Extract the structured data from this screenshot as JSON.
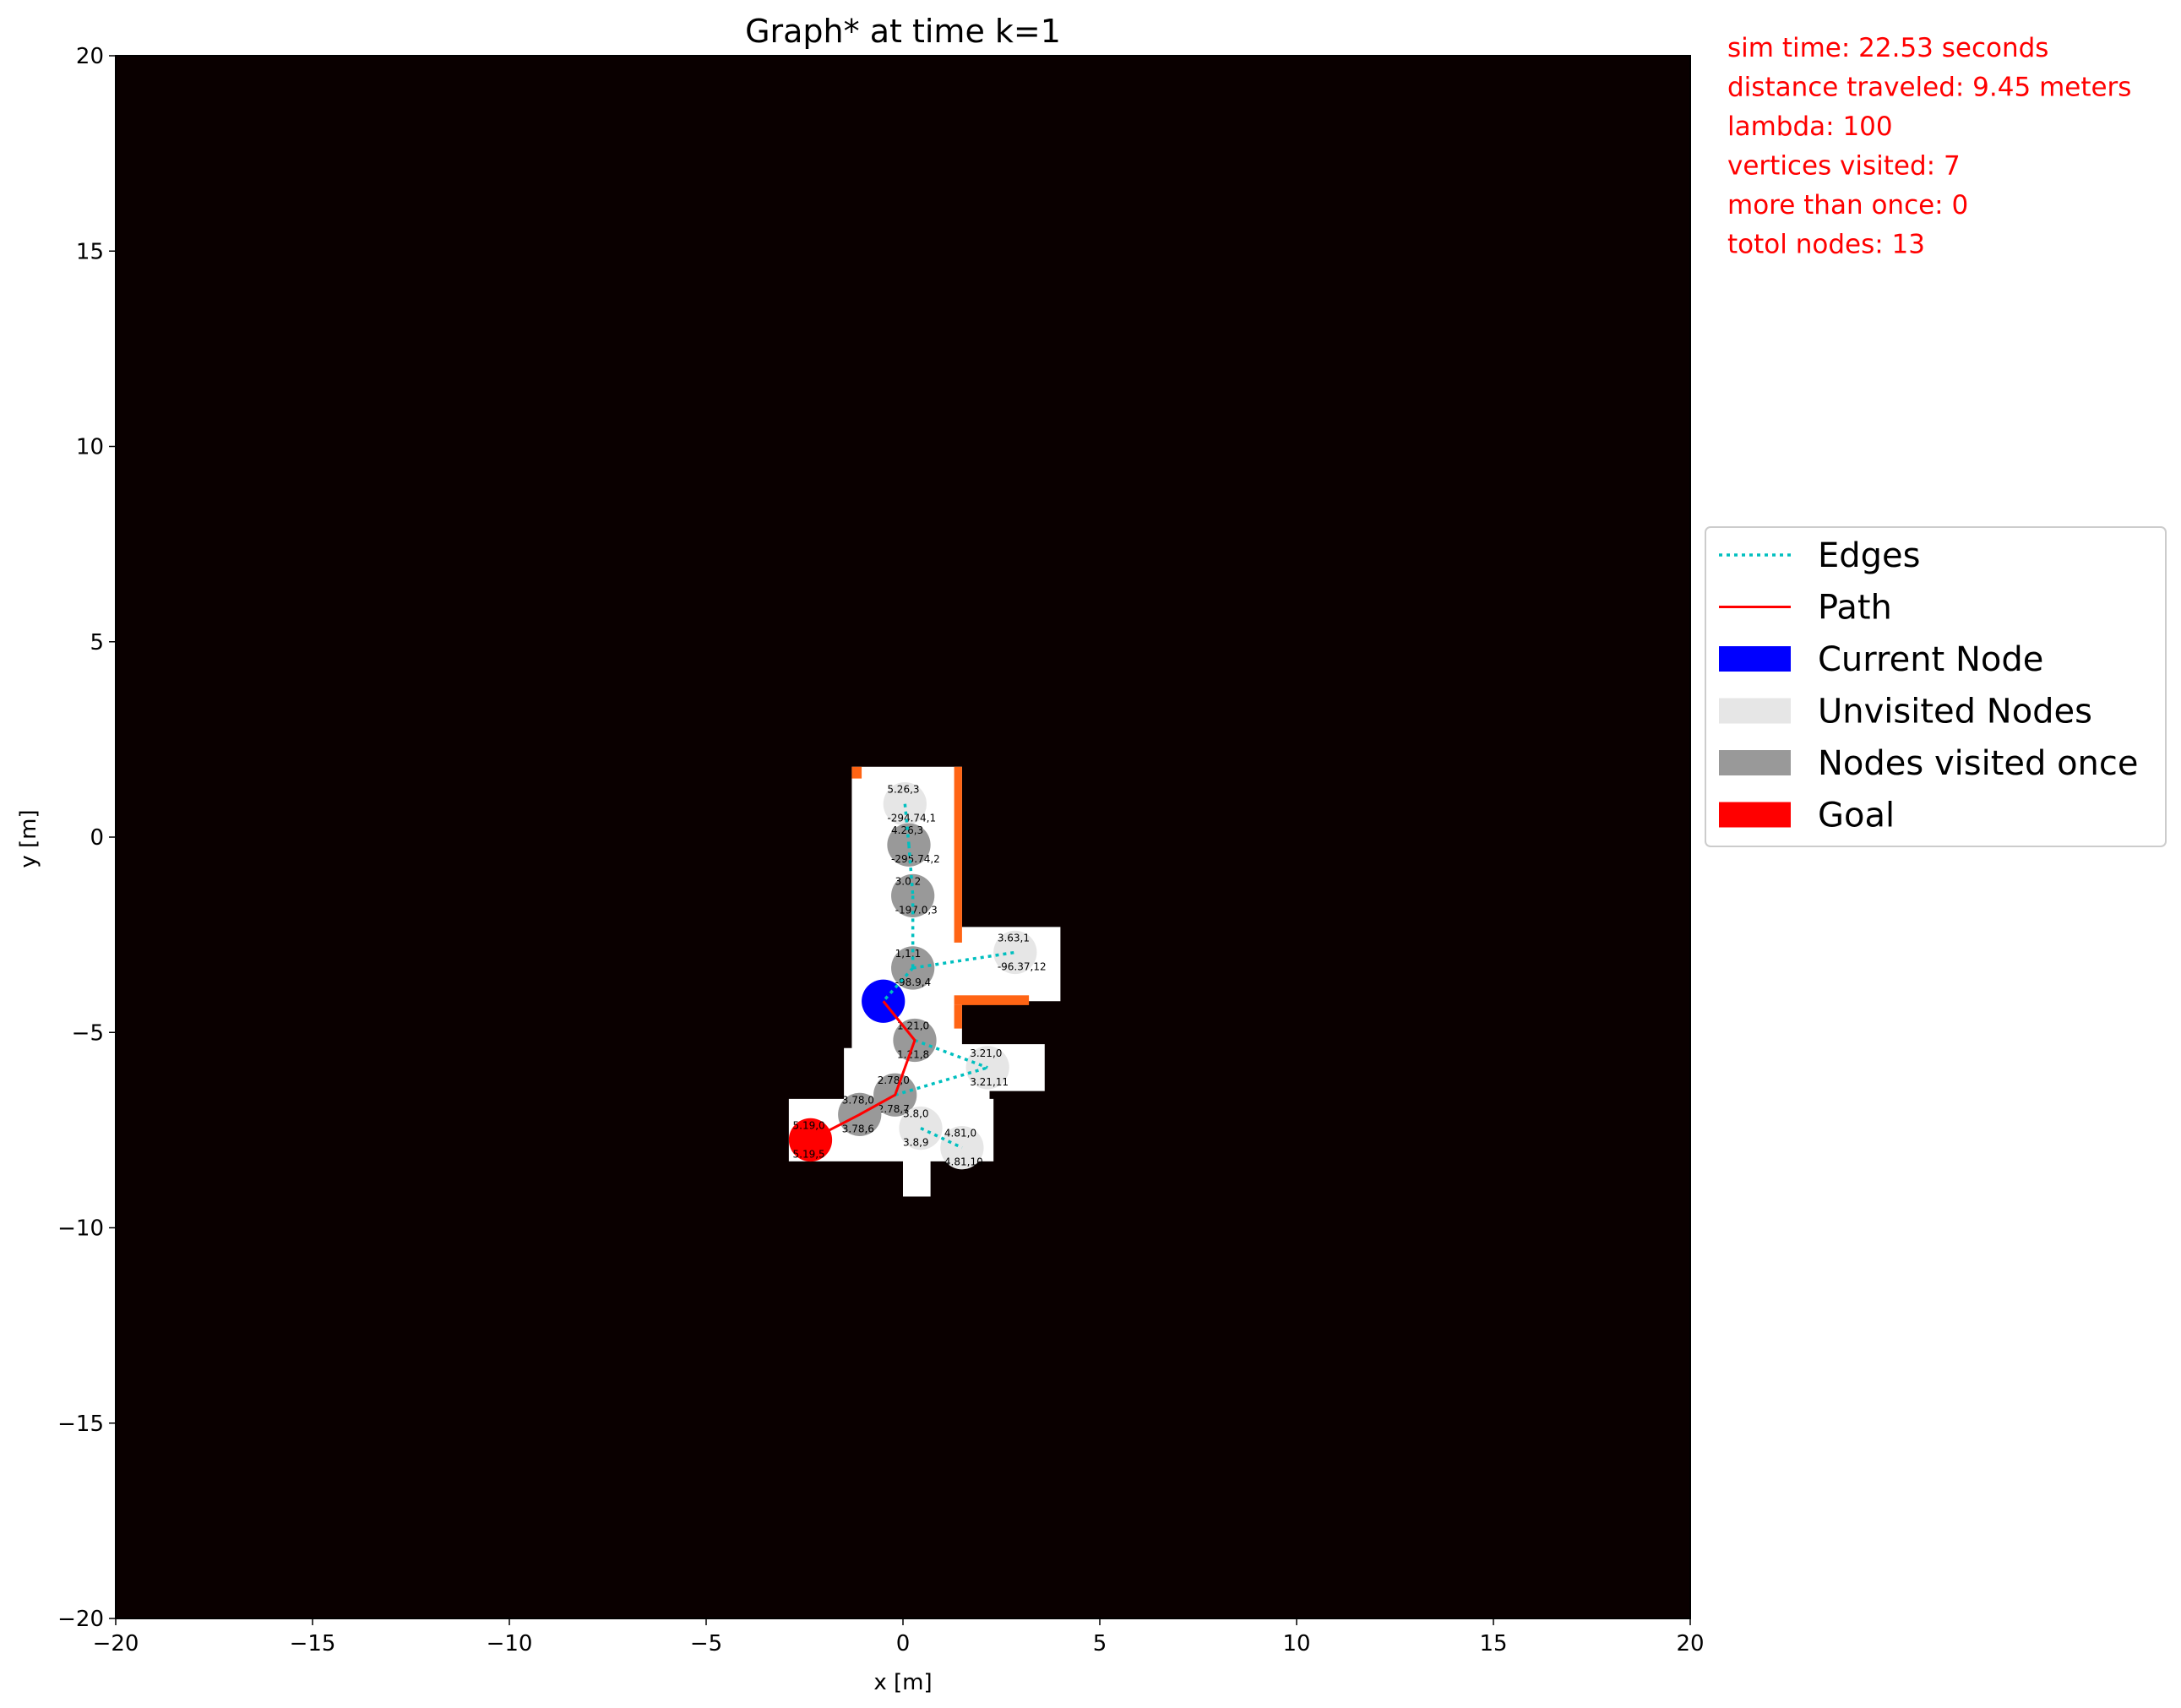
{
  "chart_data": {
    "type": "scatter",
    "title": "Graph* at time k=1",
    "xlabel": "x [m]",
    "ylabel": "y [m]",
    "xlim": [
      -20,
      20
    ],
    "ylim": [
      -20,
      20
    ],
    "xticks": [
      -20,
      -15,
      -10,
      -5,
      0,
      5,
      10,
      15,
      20
    ],
    "yticks": [
      -20,
      -15,
      -10,
      -5,
      0,
      5,
      10,
      15,
      20
    ],
    "xtick_labels": [
      "−20",
      "−15",
      "−10",
      "−5",
      "0",
      "5",
      "10",
      "15",
      "20"
    ],
    "ytick_labels": [
      "−20",
      "−15",
      "−10",
      "−5",
      "0",
      "5",
      "10",
      "15",
      "20"
    ],
    "grid": false,
    "legend_position": "right",
    "background_color": "#0a0000",
    "free_space_color": "#ffffff",
    "wall_color": "#ff6414",
    "free_space_regions": [
      {
        "x": [
          -1.3,
          1.5
        ],
        "y": [
          -5.6,
          1.8
        ]
      },
      {
        "x": [
          1.3,
          4.0
        ],
        "y": [
          -4.2,
          -2.3
        ]
      },
      {
        "x": [
          1.3,
          3.6
        ],
        "y": [
          -6.5,
          -5.3
        ]
      },
      {
        "x": [
          -1.5,
          2.2
        ],
        "y": [
          -7.2,
          -5.4
        ]
      },
      {
        "x": [
          -2.9,
          2.3
        ],
        "y": [
          -8.3,
          -6.7
        ]
      },
      {
        "x": [
          0.0,
          0.7
        ],
        "y": [
          -9.2,
          -8.2
        ]
      }
    ],
    "walls": [
      {
        "x": [
          1.3,
          1.5
        ],
        "y": [
          -2.7,
          1.8
        ]
      },
      {
        "x": [
          -1.3,
          -1.05
        ],
        "y": [
          1.5,
          1.8
        ]
      },
      {
        "x": [
          1.3,
          3.2
        ],
        "y": [
          -4.3,
          -4.05
        ]
      },
      {
        "x": [
          1.3,
          1.5
        ],
        "y": [
          -4.9,
          -4.3
        ]
      }
    ],
    "nodes": [
      {
        "x": 0.05,
        "y": 0.85,
        "state": "unvisited",
        "labels": [
          "5.26,3",
          "-294.74,1"
        ]
      },
      {
        "x": 0.15,
        "y": -0.2,
        "state": "visited_once",
        "labels": [
          "4.26,3",
          "-295.74,2"
        ]
      },
      {
        "x": 0.25,
        "y": -1.5,
        "state": "visited_once",
        "labels": [
          "3.0,2",
          "-197.0,3"
        ]
      },
      {
        "x": 0.25,
        "y": -3.35,
        "state": "visited_once",
        "labels": [
          "1,1,1",
          "-98.9,4"
        ]
      },
      {
        "x": 2.85,
        "y": -2.95,
        "state": "unvisited",
        "labels": [
          "3.63,1",
          "-96.37,12"
        ]
      },
      {
        "x": -0.5,
        "y": -4.2,
        "state": "current",
        "labels": [
          "",
          ""
        ]
      },
      {
        "x": 0.3,
        "y": -5.2,
        "state": "visited_once",
        "labels": [
          "1.21,0",
          "1.21,8"
        ]
      },
      {
        "x": 2.15,
        "y": -5.9,
        "state": "unvisited",
        "labels": [
          "3.21,0",
          "3.21,11"
        ]
      },
      {
        "x": -0.2,
        "y": -6.6,
        "state": "visited_once",
        "labels": [
          "2.78,0",
          "2.78,7"
        ]
      },
      {
        "x": -1.1,
        "y": -7.1,
        "state": "visited_once",
        "labels": [
          "3.78,0",
          "3.78,6"
        ]
      },
      {
        "x": 0.45,
        "y": -7.45,
        "state": "unvisited",
        "labels": [
          "3.8,0",
          "3.8,9"
        ]
      },
      {
        "x": 1.5,
        "y": -7.95,
        "state": "unvisited",
        "labels": [
          "4.81,0",
          "4.81,10"
        ]
      },
      {
        "x": -2.35,
        "y": -7.75,
        "state": "goal",
        "labels": [
          "5.19,0",
          "5.19,5"
        ]
      }
    ],
    "edges": [
      [
        [
          0.05,
          0.85
        ],
        [
          0.15,
          -0.2
        ]
      ],
      [
        [
          0.15,
          -0.2
        ],
        [
          0.25,
          -1.5
        ]
      ],
      [
        [
          0.25,
          -1.5
        ],
        [
          0.25,
          -3.35
        ]
      ],
      [
        [
          0.25,
          -3.35
        ],
        [
          2.85,
          -2.95
        ]
      ],
      [
        [
          0.25,
          -3.35
        ],
        [
          -0.5,
          -4.2
        ]
      ],
      [
        [
          0.3,
          -5.2
        ],
        [
          2.15,
          -5.9
        ]
      ],
      [
        [
          -0.2,
          -6.6
        ],
        [
          2.15,
          -5.9
        ]
      ],
      [
        [
          0.45,
          -7.45
        ],
        [
          1.5,
          -7.95
        ]
      ]
    ],
    "path": [
      [
        -0.5,
        -4.2
      ],
      [
        0.3,
        -5.2
      ],
      [
        -0.2,
        -6.6
      ],
      [
        -1.1,
        -7.1
      ],
      [
        -2.35,
        -7.75
      ]
    ],
    "legend": [
      {
        "label": "Edges",
        "kind": "dotted-line",
        "color": "#00bfbf"
      },
      {
        "label": "Path",
        "kind": "line",
        "color": "#ff0000"
      },
      {
        "label": "Current Node",
        "kind": "patch",
        "color": "#0000ff"
      },
      {
        "label": "Unvisited Nodes",
        "kind": "patch",
        "color": "#e6e6e6"
      },
      {
        "label": "Nodes visited once",
        "kind": "patch",
        "color": "#999999"
      },
      {
        "label": "Goal",
        "kind": "patch",
        "color": "#ff0000"
      }
    ],
    "node_colors": {
      "current": "#0000ff",
      "unvisited": "#e6e6e6",
      "visited_once": "#999999",
      "goal": "#ff0000"
    },
    "info_lines": [
      "sim time: 22.53 seconds",
      "distance traveled: 9.45 meters",
      "lambda: 100",
      "vertices visited: 7",
      "more than once: 0",
      "totol nodes: 13"
    ]
  }
}
